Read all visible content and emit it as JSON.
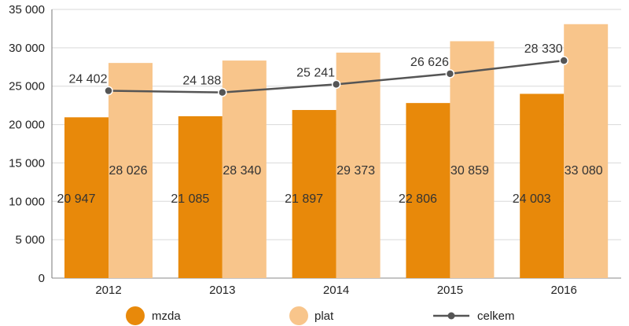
{
  "chart_data": {
    "type": "bar",
    "categories": [
      "2012",
      "2013",
      "2014",
      "2015",
      "2016"
    ],
    "series": [
      {
        "name": "mzda",
        "type": "bar",
        "color": "#E8890A",
        "values": [
          20947,
          21085,
          21897,
          22806,
          24003
        ],
        "labels": [
          "20 947",
          "21 085",
          "21 897",
          "22 806",
          "24 003"
        ]
      },
      {
        "name": "plat",
        "type": "bar",
        "color": "#F8C58B",
        "values": [
          28026,
          28340,
          29373,
          30859,
          33080
        ],
        "labels": [
          "28 026",
          "28 340",
          "29 373",
          "30 859",
          "33 080"
        ]
      },
      {
        "name": "celkem",
        "type": "line",
        "color": "#555555",
        "values": [
          24402,
          24188,
          25241,
          26626,
          28330
        ],
        "labels": [
          "24 402",
          "24 188",
          "25 241",
          "26 626",
          "28 330"
        ]
      }
    ],
    "ylim": [
      0,
      35000
    ],
    "yticks": [
      0,
      5000,
      10000,
      15000,
      20000,
      25000,
      30000,
      35000
    ],
    "ytick_labels": [
      "0",
      "5 000",
      "10 000",
      "15 000",
      "20 000",
      "25 000",
      "30 000",
      "35 000"
    ],
    "grid": true,
    "legend_position": "bottom"
  }
}
